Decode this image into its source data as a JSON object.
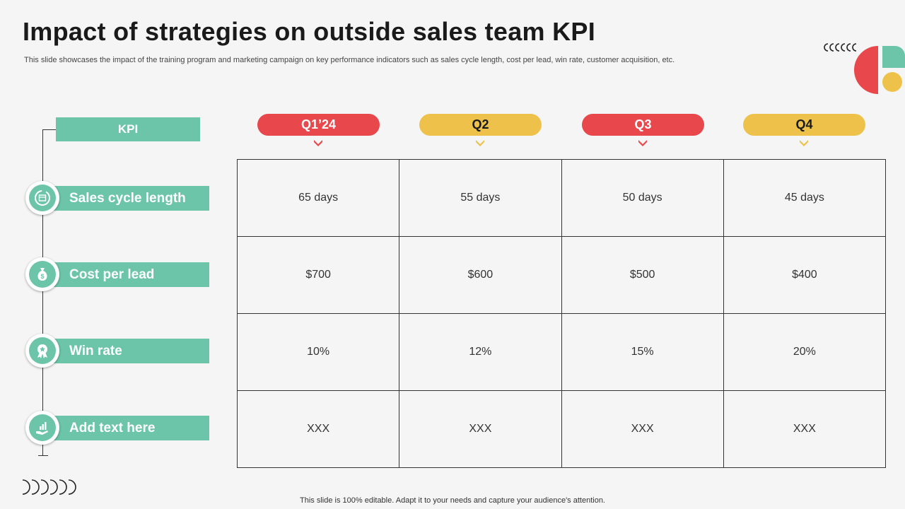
{
  "slide": {
    "title": "Impact of strategies on outside sales team KPI",
    "subtitle": "This slide showcases the impact of the training program and marketing campaign on key performance indicators such as sales cycle length, cost per lead, win rate, customer acquisition, etc.",
    "footer": "This slide is 100% editable. Adapt it to your needs and capture your audience's attention."
  },
  "kpi": {
    "header": "KPI",
    "items": [
      {
        "label": "Sales cycle length",
        "icon": "cycle-icon"
      },
      {
        "label": "Cost per lead",
        "icon": "money-bag-icon"
      },
      {
        "label": "Win rate",
        "icon": "award-icon"
      },
      {
        "label": "Add text here",
        "icon": "growth-hand-icon"
      }
    ]
  },
  "quarters": [
    {
      "label": "Q1’24",
      "color": "#e8474b"
    },
    {
      "label": "Q2",
      "color": "#eec24a"
    },
    {
      "label": "Q3",
      "color": "#e8474b"
    },
    {
      "label": "Q4",
      "color": "#eec24a"
    }
  ],
  "table": {
    "rows": [
      [
        "65 days",
        "55 days",
        "50 days",
        "45 days"
      ],
      [
        "$700",
        "$600",
        "$500",
        "$400"
      ],
      [
        "10%",
        "12%",
        "15%",
        "20%"
      ],
      [
        "XXX",
        "XXX",
        "XXX",
        "XXX"
      ]
    ]
  },
  "colors": {
    "accent_green": "#6cc5a8",
    "accent_red": "#e8474b",
    "accent_yellow": "#eec24a"
  }
}
